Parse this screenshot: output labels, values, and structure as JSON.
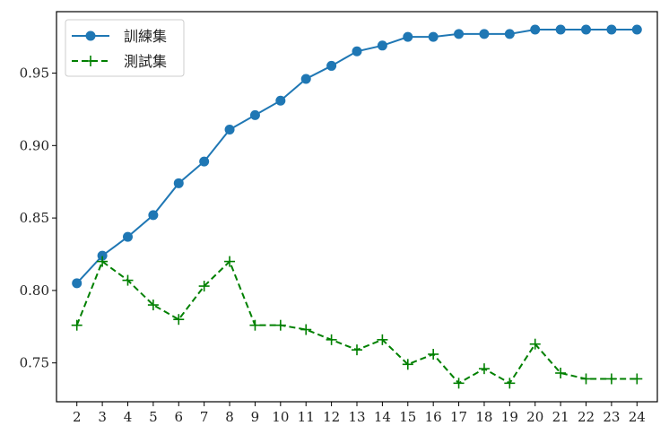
{
  "chart_data": {
    "type": "line",
    "title": "",
    "xlabel": "",
    "ylabel": "",
    "x": [
      2,
      3,
      4,
      5,
      6,
      7,
      8,
      9,
      10,
      11,
      12,
      13,
      14,
      15,
      16,
      17,
      18,
      19,
      20,
      21,
      22,
      23,
      24
    ],
    "xlim": [
      1.2,
      24.8
    ],
    "ylim": [
      0.7232,
      0.9924
    ],
    "yticks": [
      0.75,
      0.8,
      0.85,
      0.9,
      0.95
    ],
    "ytick_labels": [
      "0.75",
      "0.80",
      "0.85",
      "0.90",
      "0.95"
    ],
    "legend_position": "top-left",
    "grid": false,
    "series": [
      {
        "name": "訓練集",
        "color": "#1f77b4",
        "linestyle": "solid",
        "marker": "circle",
        "values": [
          0.805,
          0.824,
          0.837,
          0.852,
          0.874,
          0.889,
          0.911,
          0.921,
          0.931,
          0.946,
          0.955,
          0.965,
          0.969,
          0.975,
          0.975,
          0.977,
          0.977,
          0.977,
          0.98,
          0.98,
          0.98,
          0.98,
          0.98
        ]
      },
      {
        "name": "測試集",
        "color": "#008000",
        "linestyle": "dashed",
        "marker": "plus",
        "values": [
          0.776,
          0.82,
          0.807,
          0.79,
          0.78,
          0.803,
          0.82,
          0.776,
          0.776,
          0.773,
          0.766,
          0.759,
          0.766,
          0.749,
          0.756,
          0.736,
          0.746,
          0.736,
          0.763,
          0.743,
          0.739,
          0.739,
          0.739
        ]
      }
    ]
  }
}
